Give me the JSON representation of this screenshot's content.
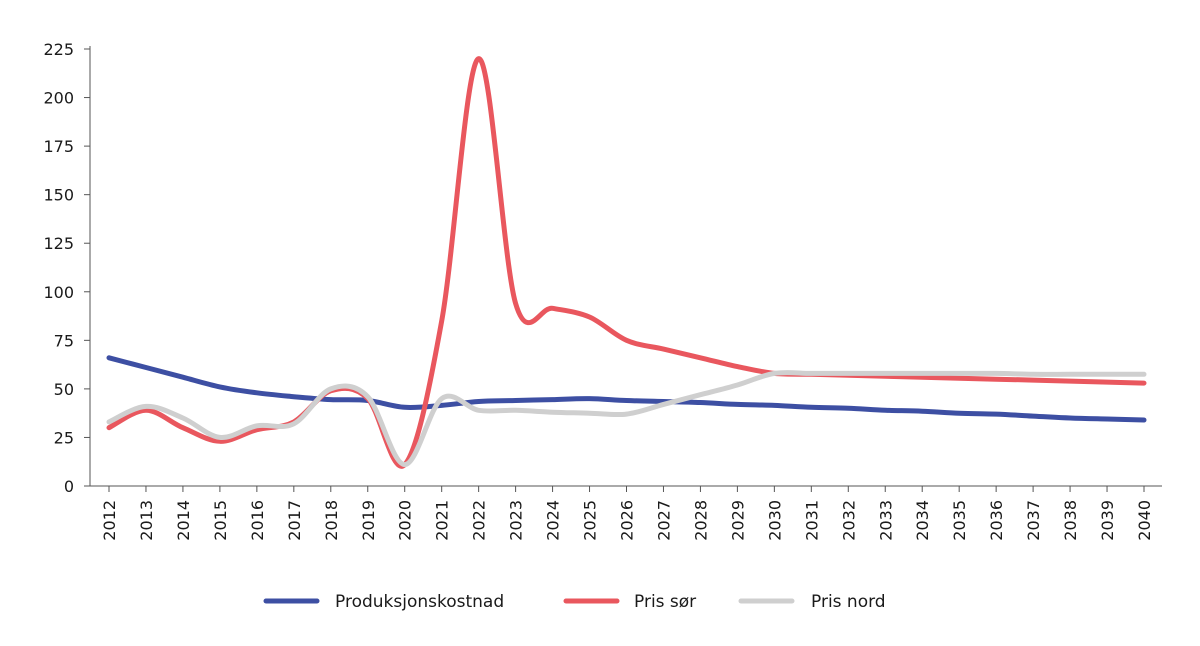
{
  "chart_data": {
    "type": "line",
    "title": "",
    "xlabel": "",
    "ylabel": "",
    "x": [
      2012,
      2013,
      2014,
      2015,
      2016,
      2017,
      2018,
      2019,
      2020,
      2021,
      2022,
      2023,
      2024,
      2025,
      2026,
      2027,
      2028,
      2029,
      2030,
      2031,
      2032,
      2033,
      2034,
      2035,
      2036,
      2037,
      2038,
      2039,
      2040
    ],
    "ylim": [
      0,
      225
    ],
    "yticks": [
      0,
      25,
      50,
      75,
      100,
      125,
      150,
      175,
      200,
      225
    ],
    "grid": false,
    "legend_position": "bottom",
    "series": [
      {
        "name": "Produksjonskostnad",
        "color": "#3d4fa3",
        "values": [
          66,
          61,
          56,
          51,
          48,
          46,
          44.5,
          44,
          40.5,
          41.5,
          43.5,
          44,
          44.5,
          45,
          44,
          43.5,
          43,
          42,
          41.5,
          40.5,
          40,
          39,
          38.5,
          37.5,
          37,
          36,
          35,
          34.5,
          34
        ]
      },
      {
        "name": "Pris sør",
        "color": "#e9575e",
        "values": [
          30,
          39,
          30,
          23,
          29,
          33,
          49,
          45,
          11,
          85,
          220,
          94,
          91.5,
          87,
          75,
          70.5,
          66,
          61.5,
          58,
          57.5,
          57,
          56.5,
          56,
          55.5,
          55,
          54.5,
          54,
          53.5,
          53
        ]
      },
      {
        "name": "Pris nord",
        "color": "#cfcfcf",
        "values": [
          33,
          41,
          35,
          25,
          31,
          32,
          50,
          46,
          11,
          45,
          39,
          39,
          38,
          37.5,
          37,
          42,
          47,
          52,
          58,
          58,
          58,
          58,
          58,
          58,
          58,
          57.5,
          57.5,
          57.5,
          57.5
        ]
      }
    ]
  }
}
